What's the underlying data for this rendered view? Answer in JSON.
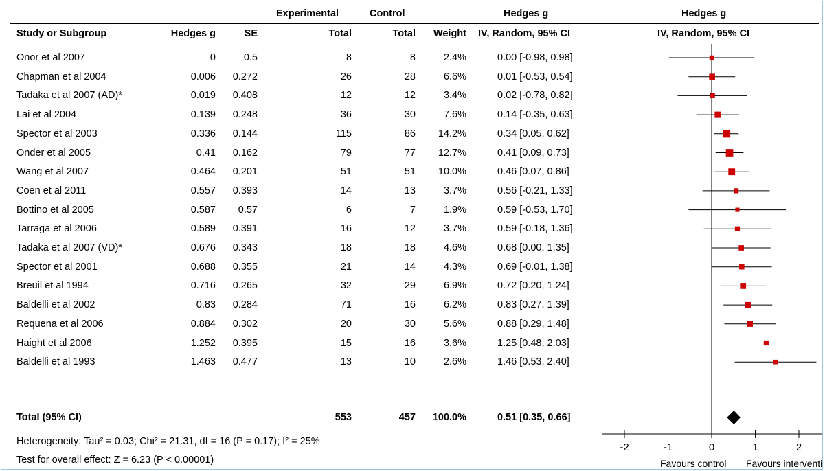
{
  "header": {
    "group_experimental": "Experimental",
    "group_control": "Control",
    "effect_title": "Hedges g",
    "plot_title": "Hedges g",
    "study_col": "Study or Subgroup",
    "g_col": "Hedges g",
    "se_col": "SE",
    "exp_total_col": "Total",
    "ctrl_total_col": "Total",
    "weight_col": "Weight",
    "ci_col": "IV, Random, 95% CI",
    "plot_ci_col": "IV, Random, 95% CI"
  },
  "rows": [
    {
      "study": "Onor et al 2007",
      "g": "0",
      "se": "0.5",
      "exp": "8",
      "ctrl": "8",
      "weight": "2.4%",
      "ci": "0.00 [-0.98, 0.98]"
    },
    {
      "study": "Chapman et al 2004",
      "g": "0.006",
      "se": "0.272",
      "exp": "26",
      "ctrl": "28",
      "weight": "6.6%",
      "ci": "0.01 [-0.53, 0.54]"
    },
    {
      "study": "Tadaka et al 2007 (AD)*",
      "g": "0.019",
      "se": "0.408",
      "exp": "12",
      "ctrl": "12",
      "weight": "3.4%",
      "ci": "0.02 [-0.78, 0.82]"
    },
    {
      "study": "Lai et al 2004",
      "g": "0.139",
      "se": "0.248",
      "exp": "36",
      "ctrl": "30",
      "weight": "7.6%",
      "ci": "0.14 [-0.35, 0.63]"
    },
    {
      "study": "Spector et al 2003",
      "g": "0.336",
      "se": "0.144",
      "exp": "115",
      "ctrl": "86",
      "weight": "14.2%",
      "ci": "0.34 [0.05, 0.62]"
    },
    {
      "study": "Onder et al 2005",
      "g": "0.41",
      "se": "0.162",
      "exp": "79",
      "ctrl": "77",
      "weight": "12.7%",
      "ci": "0.41 [0.09, 0.73]"
    },
    {
      "study": "Wang et al 2007",
      "g": "0.464",
      "se": "0.201",
      "exp": "51",
      "ctrl": "51",
      "weight": "10.0%",
      "ci": "0.46 [0.07, 0.86]"
    },
    {
      "study": "Coen et al 2011",
      "g": "0.557",
      "se": "0.393",
      "exp": "14",
      "ctrl": "13",
      "weight": "3.7%",
      "ci": "0.56 [-0.21, 1.33]"
    },
    {
      "study": "Bottino et al 2005",
      "g": "0.587",
      "se": "0.57",
      "exp": "6",
      "ctrl": "7",
      "weight": "1.9%",
      "ci": "0.59 [-0.53, 1.70]"
    },
    {
      "study": "Tarraga et al 2006",
      "g": "0.589",
      "se": "0.391",
      "exp": "16",
      "ctrl": "12",
      "weight": "3.7%",
      "ci": "0.59 [-0.18, 1.36]"
    },
    {
      "study": "Tadaka et al 2007 (VD)*",
      "g": "0.676",
      "se": "0.343",
      "exp": "18",
      "ctrl": "18",
      "weight": "4.6%",
      "ci": "0.68 [0.00, 1.35]"
    },
    {
      "study": "Spector et al 2001",
      "g": "0.688",
      "se": "0.355",
      "exp": "21",
      "ctrl": "14",
      "weight": "4.3%",
      "ci": "0.69 [-0.01, 1.38]"
    },
    {
      "study": "Breuil et al 1994",
      "g": "0.716",
      "se": "0.265",
      "exp": "32",
      "ctrl": "29",
      "weight": "6.9%",
      "ci": "0.72 [0.20, 1.24]"
    },
    {
      "study": "Baldelli et al 2002",
      "g": "0.83",
      "se": "0.284",
      "exp": "71",
      "ctrl": "16",
      "weight": "6.2%",
      "ci": "0.83 [0.27, 1.39]"
    },
    {
      "study": "Requena et al 2006",
      "g": "0.884",
      "se": "0.302",
      "exp": "20",
      "ctrl": "30",
      "weight": "5.6%",
      "ci": "0.88 [0.29, 1.48]"
    },
    {
      "study": "Haight et al 2006",
      "g": "1.252",
      "se": "0.395",
      "exp": "15",
      "ctrl": "16",
      "weight": "3.6%",
      "ci": "1.25 [0.48, 2.03]"
    },
    {
      "study": "Baldelli et al 1993",
      "g": "1.463",
      "se": "0.477",
      "exp": "13",
      "ctrl": "10",
      "weight": "2.6%",
      "ci": "1.46 [0.53, 2.40]"
    }
  ],
  "total": {
    "label": "Total (95% CI)",
    "exp": "553",
    "ctrl": "457",
    "weight": "100.0%",
    "ci": "0.51 [0.35, 0.66]"
  },
  "footer": {
    "heterogeneity": "Heterogeneity: Tau² = 0.03; Chi² = 21.31, df = 16 (P = 0.17); I² = 25%",
    "overall": "Test for overall effect: Z = 6.23 (P < 0.00001)"
  },
  "chart_data": {
    "type": "forest",
    "xlim": [
      -2,
      2
    ],
    "ticks": [
      "-2",
      "-1",
      "0",
      "1",
      "2"
    ],
    "tick_values": [
      -2,
      -1,
      0,
      1,
      2
    ],
    "favours_left": "Favours control",
    "favours_right": "Favours intervention",
    "marker_color": "#cc0000",
    "diamond_color": "#000000",
    "line_color": "#000000",
    "studies": [
      {
        "est": 0.0,
        "lo": -0.98,
        "hi": 0.98,
        "w": 2.4
      },
      {
        "est": 0.01,
        "lo": -0.53,
        "hi": 0.54,
        "w": 6.6
      },
      {
        "est": 0.02,
        "lo": -0.78,
        "hi": 0.82,
        "w": 3.4
      },
      {
        "est": 0.14,
        "lo": -0.35,
        "hi": 0.63,
        "w": 7.6
      },
      {
        "est": 0.34,
        "lo": 0.05,
        "hi": 0.62,
        "w": 14.2
      },
      {
        "est": 0.41,
        "lo": 0.09,
        "hi": 0.73,
        "w": 12.7
      },
      {
        "est": 0.46,
        "lo": 0.07,
        "hi": 0.86,
        "w": 10.0
      },
      {
        "est": 0.56,
        "lo": -0.21,
        "hi": 1.33,
        "w": 3.7
      },
      {
        "est": 0.59,
        "lo": -0.53,
        "hi": 1.7,
        "w": 1.9
      },
      {
        "est": 0.59,
        "lo": -0.18,
        "hi": 1.36,
        "w": 3.7
      },
      {
        "est": 0.68,
        "lo": 0.0,
        "hi": 1.35,
        "w": 4.6
      },
      {
        "est": 0.69,
        "lo": -0.01,
        "hi": 1.38,
        "w": 4.3
      },
      {
        "est": 0.72,
        "lo": 0.2,
        "hi": 1.24,
        "w": 6.9
      },
      {
        "est": 0.83,
        "lo": 0.27,
        "hi": 1.39,
        "w": 6.2
      },
      {
        "est": 0.88,
        "lo": 0.29,
        "hi": 1.48,
        "w": 5.6
      },
      {
        "est": 1.25,
        "lo": 0.48,
        "hi": 2.03,
        "w": 3.6
      },
      {
        "est": 1.46,
        "lo": 0.53,
        "hi": 2.4,
        "w": 2.6
      }
    ],
    "pooled": {
      "est": 0.51,
      "lo": 0.35,
      "hi": 0.66
    }
  }
}
